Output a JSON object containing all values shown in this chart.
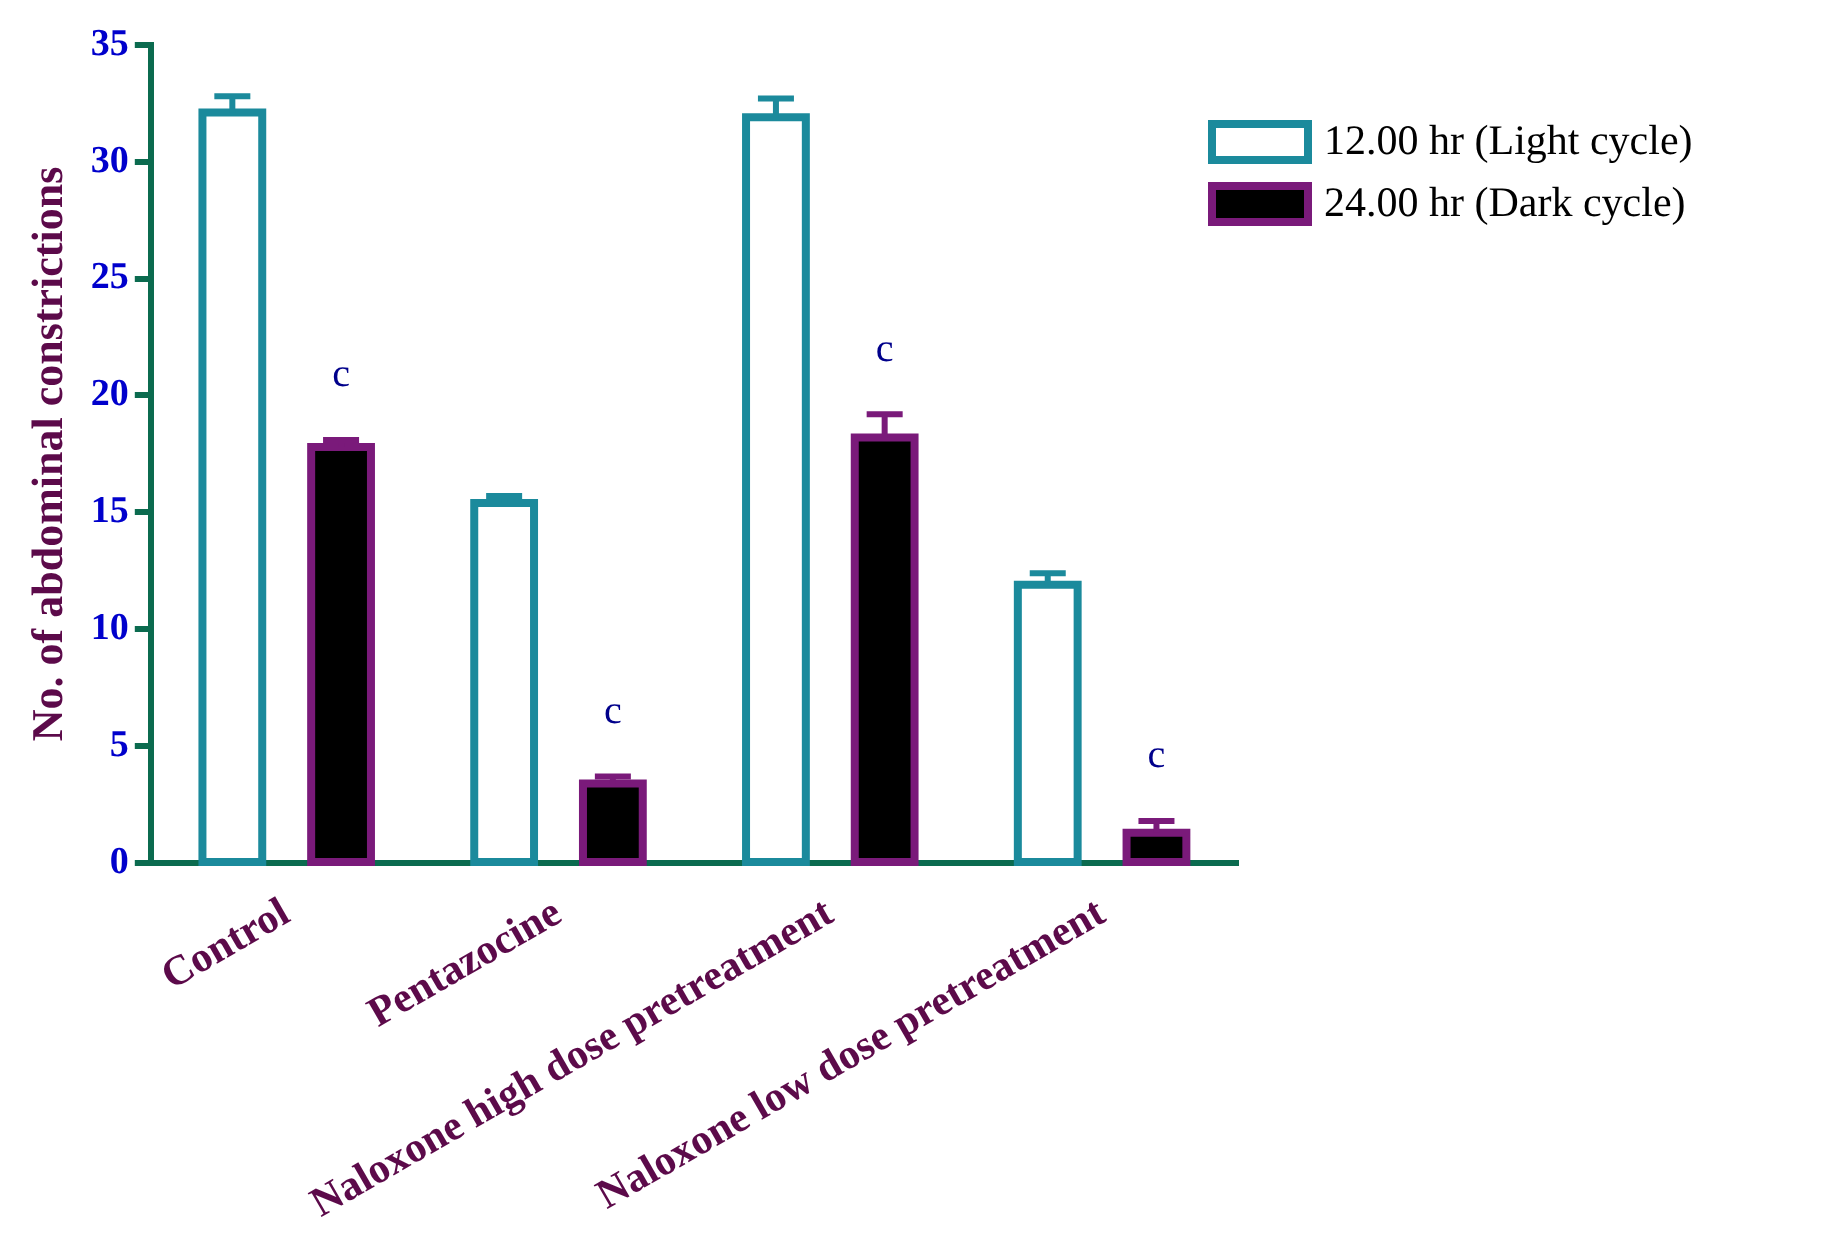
{
  "chart_data": {
    "type": "bar",
    "ylabel": "No. of abdominal constrictions",
    "categories": [
      "Control",
      "Pentazocine",
      "Naloxone high dose pretreatment",
      "Naloxone low dose pretreatment"
    ],
    "series": [
      {
        "name": "12.00 hr (Light cycle)",
        "color": "#1b8a9c",
        "values": [
          32.1,
          15.4,
          31.9,
          11.9
        ],
        "errors": [
          [
            32.1,
            32.8
          ],
          [
            15.4,
            15.7
          ],
          [
            31.9,
            32.7
          ],
          [
            11.9,
            12.4
          ]
        ]
      },
      {
        "name": "24.00 hr (Dark cycle)",
        "color": "#7a1a7a",
        "values": [
          17.8,
          3.4,
          18.2,
          1.3
        ],
        "errors": [
          [
            17.8,
            18.1
          ],
          [
            3.4,
            3.7
          ],
          [
            18.2,
            19.2
          ],
          [
            1.3,
            1.8
          ]
        ]
      }
    ],
    "annotations": [
      "c",
      "c",
      "c",
      "c"
    ],
    "ylim": [
      0,
      35
    ],
    "yticks": [
      0,
      5,
      10,
      15,
      20,
      25,
      30,
      35
    ],
    "grid": false,
    "legend": "top right"
  }
}
